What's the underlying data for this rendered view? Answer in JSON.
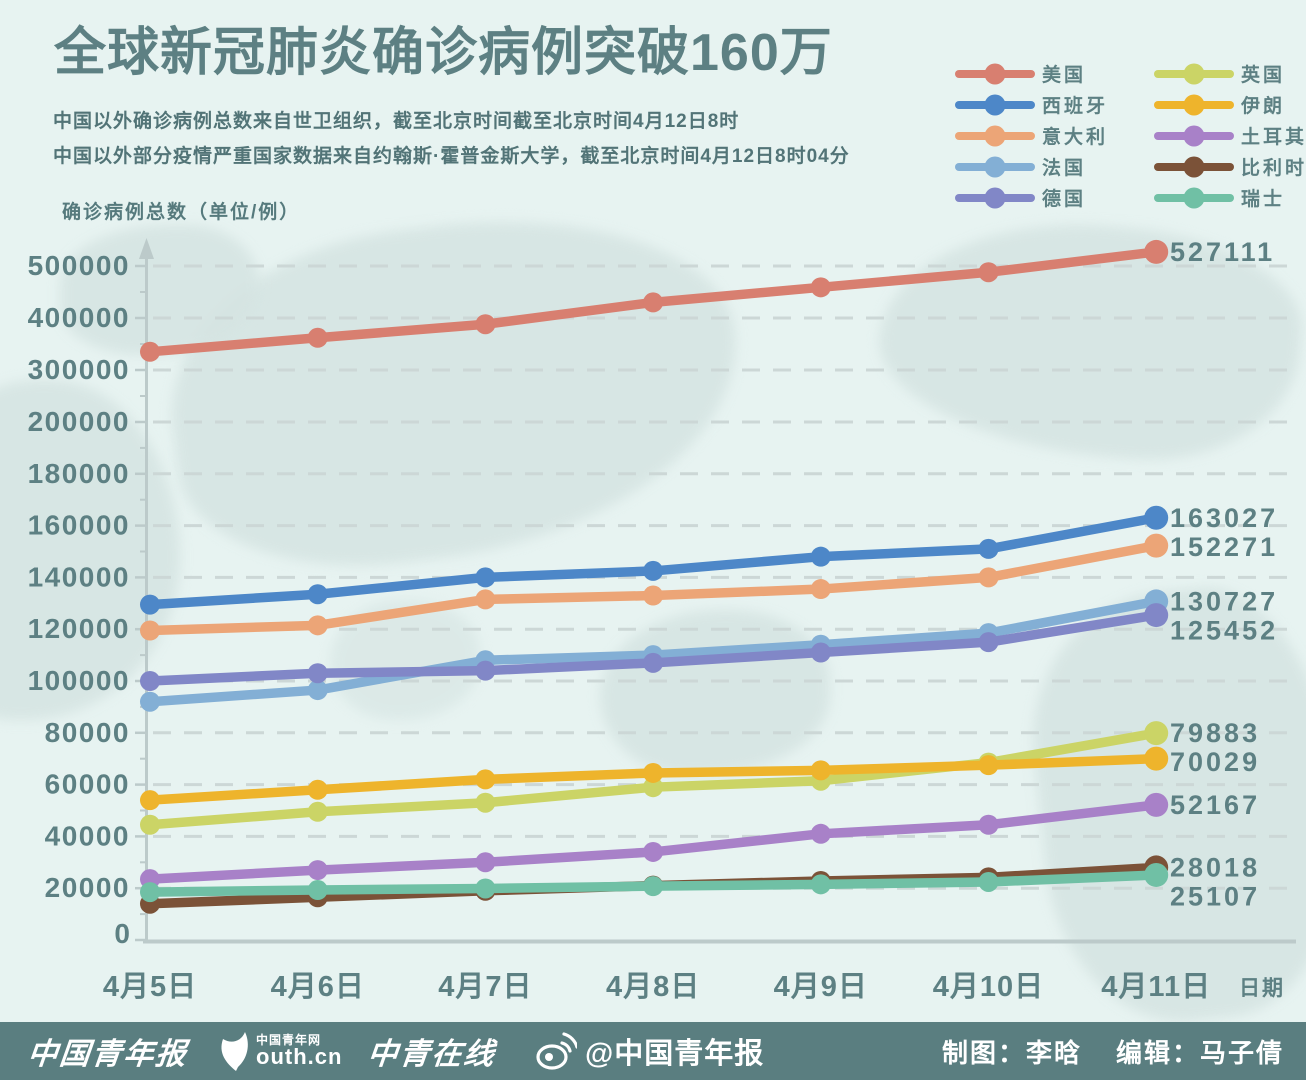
{
  "title": "全球新冠肺炎确诊病例突破160万",
  "subtitles": {
    "line1": "中国以外确诊病例总数来自世卫组织，截至北京时间截至北京时间4月12日8时",
    "line2": "中国以外部分疫情严重国家数据来自约翰斯·霍普金斯大学，截至北京时间4月12日8时04分"
  },
  "y_axis_title": "确诊病例总数（单位/例）",
  "x_axis_title": "日期",
  "chart_data": {
    "type": "line",
    "x_categories": [
      "4月5日",
      "4月6日",
      "4月7日",
      "4月8日",
      "4月9日",
      "4月10日",
      "4月11日"
    ],
    "y_ticks": [
      0,
      20000,
      40000,
      60000,
      80000,
      100000,
      120000,
      140000,
      160000,
      180000,
      200000,
      300000,
      400000,
      500000
    ],
    "y_scale": "broken axis: linear 0-200000 in 20000 steps, compressed above 200000 (100000 per step, equal spacing)",
    "grid": "light dashed horizontal gridlines at every major tick",
    "legend_position": "top-right, two columns",
    "series": [
      {
        "id": "usa",
        "name": "美国",
        "color": "#d87f70",
        "legend_column": 0,
        "values": [
          335000,
          362000,
          388000,
          430000,
          459000,
          488000,
          527111
        ],
        "end_label": "527111"
      },
      {
        "id": "spain",
        "name": "西班牙",
        "color": "#4d87c8",
        "legend_column": 0,
        "values": [
          129500,
          133500,
          140000,
          142500,
          148000,
          151000,
          163027
        ],
        "end_label": "163027"
      },
      {
        "id": "italy",
        "name": "意大利",
        "color": "#eca577",
        "legend_column": 0,
        "values": [
          119500,
          121500,
          131500,
          133000,
          135500,
          140000,
          152271
        ],
        "end_label": "152271"
      },
      {
        "id": "france",
        "name": "法国",
        "color": "#83afd5",
        "legend_column": 0,
        "values": [
          92000,
          96500,
          108000,
          110000,
          114000,
          118500,
          130727
        ],
        "end_label": "130727"
      },
      {
        "id": "germany",
        "name": "德国",
        "color": "#8187c7",
        "legend_column": 0,
        "values": [
          100000,
          103000,
          104000,
          107000,
          111000,
          115000,
          125452
        ],
        "end_label": "125452"
      },
      {
        "id": "uk",
        "name": "英国",
        "color": "#cbd466",
        "legend_column": 1,
        "values": [
          44500,
          49500,
          53000,
          59000,
          61500,
          68500,
          79883
        ],
        "end_label": "79883"
      },
      {
        "id": "iran",
        "name": "伊朗",
        "color": "#eeb42c",
        "legend_column": 1,
        "values": [
          54000,
          58000,
          62000,
          64500,
          65500,
          67500,
          70029
        ],
        "end_label": "70029"
      },
      {
        "id": "turkey",
        "name": "土耳其",
        "color": "#a881c8",
        "legend_column": 1,
        "values": [
          23500,
          27000,
          30000,
          34000,
          41000,
          44500,
          52167
        ],
        "end_label": "52167"
      },
      {
        "id": "belgium",
        "name": "比利时",
        "color": "#7b5238",
        "legend_column": 1,
        "values": [
          14000,
          16500,
          19000,
          21000,
          22800,
          24200,
          28018
        ],
        "end_label": "28018"
      },
      {
        "id": "switzerland",
        "name": "瑞士",
        "color": "#70c0a5",
        "legend_column": 1,
        "values": [
          18500,
          19300,
          19900,
          20800,
          21500,
          22400,
          25107
        ],
        "end_label": "25107"
      }
    ]
  },
  "footer": {
    "logo1": "中国青年报",
    "logo2_badge": "中国青年网",
    "logo2_text": "outh.cn",
    "logo3": "中青在线",
    "weibo_handle": "@中国青年报",
    "credits_left": "制图：李晗",
    "credits_right": "编辑：马子倩"
  },
  "colors": {
    "background": "#e7f3f1",
    "map_landmass": "#d5e4e2",
    "title_text": "#5d8083",
    "subtitle_text": "#527477",
    "axis_text": "#5d8083",
    "axis_line": "#bccaca",
    "gridline": "#ccd7d6",
    "footer_background": "#5a7e80",
    "footer_text": "#ffffff"
  }
}
